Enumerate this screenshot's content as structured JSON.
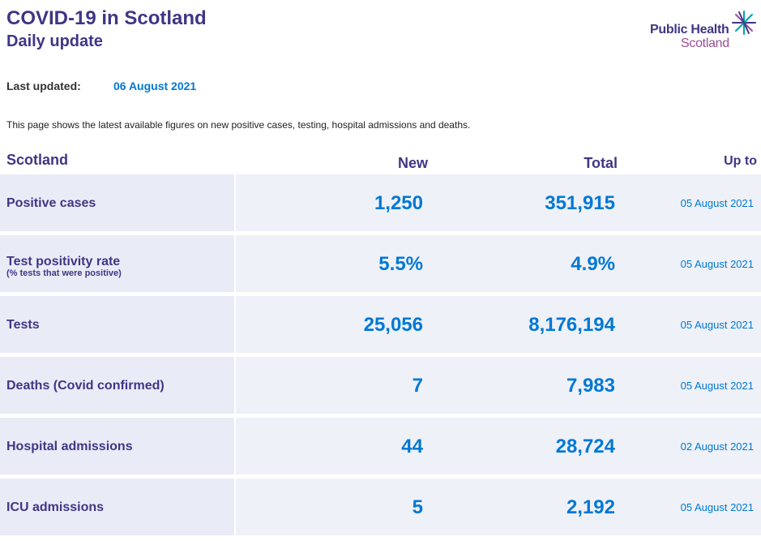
{
  "header": {
    "title": "COVID-19 in Scotland",
    "subtitle": "Daily update"
  },
  "logo": {
    "line1": "Public Health",
    "line2": "Scotland",
    "icon": "star-burst-icon",
    "colors": {
      "primary": "#3f3685",
      "secondary": "#9b4f96",
      "accent": "#00a3a6"
    }
  },
  "last_updated": {
    "label": "Last updated:",
    "value": "06 August 2021"
  },
  "intro": "This page shows the latest available figures on new positive cases, testing, hospital admissions and deaths.",
  "table": {
    "headers": {
      "region": "Scotland",
      "new": "New",
      "total": "Total",
      "up_to": "Up to"
    },
    "rows": [
      {
        "label": "Positive cases",
        "sublabel": "",
        "new": "1,250",
        "total": "351,915",
        "up_to": "05 August 2021"
      },
      {
        "label": "Test positivity rate",
        "sublabel": "(% tests that were positive)",
        "new": "5.5%",
        "total": "4.9%",
        "up_to": "05 August 2021"
      },
      {
        "label": "Tests",
        "sublabel": "",
        "new": "25,056",
        "total": "8,176,194",
        "up_to": "05 August 2021"
      },
      {
        "label": "Deaths (Covid confirmed)",
        "sublabel": "",
        "new": "7",
        "total": "7,983",
        "up_to": "05 August 2021"
      },
      {
        "label": "Hospital admissions",
        "sublabel": "",
        "new": "44",
        "total": "28,724",
        "up_to": "02 August 2021"
      },
      {
        "label": "ICU admissions",
        "sublabel": "",
        "new": "5",
        "total": "2,192",
        "up_to": "05 August 2021"
      }
    ]
  },
  "colors": {
    "heading": "#3f3685",
    "value": "#0078d4",
    "label_cell_bg": "#e9ecf6",
    "data_cell_bg": "#eef1f8"
  }
}
